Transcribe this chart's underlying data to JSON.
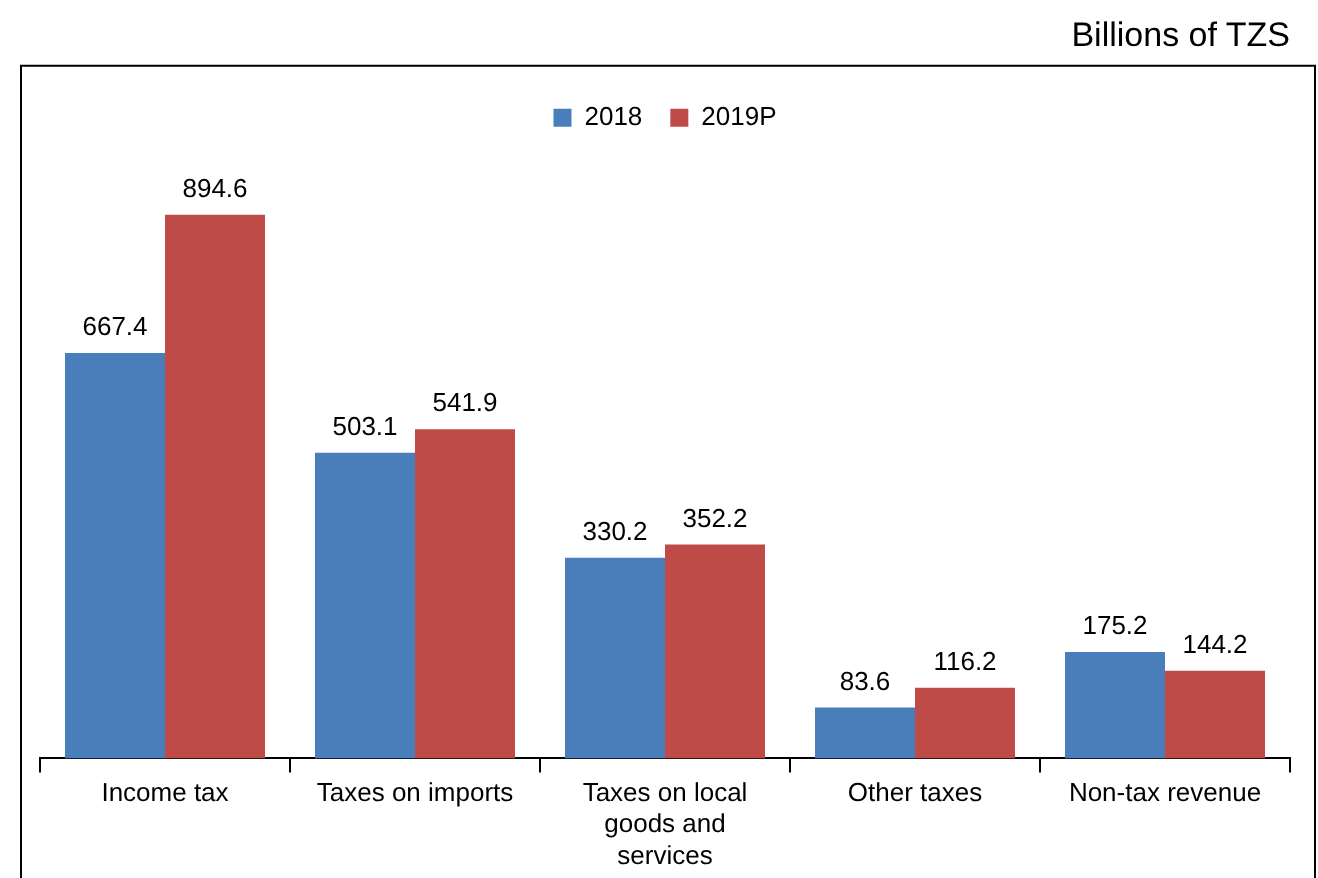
{
  "chart_data": {
    "type": "bar",
    "subtitle": "Billions of TZS",
    "categories": [
      "Income tax",
      "Taxes on imports",
      "Taxes on local goods and services",
      "Other taxes",
      "Non-tax revenue"
    ],
    "series": [
      {
        "name": "2018",
        "color": "#4a7ebb",
        "values": [
          667.4,
          503.1,
          330.2,
          83.6,
          175.2
        ]
      },
      {
        "name": "2019P",
        "color": "#be4b48",
        "values": [
          894.6,
          541.9,
          352.2,
          116.2,
          144.2
        ]
      }
    ],
    "data_labels": true,
    "legend": "top",
    "grid": false
  }
}
